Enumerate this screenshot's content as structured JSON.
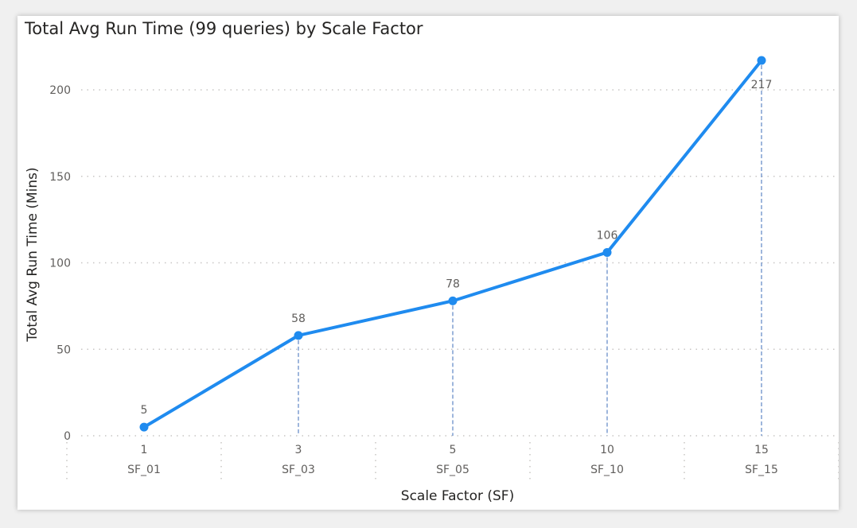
{
  "chart_data": {
    "type": "line",
    "title": "Total Avg Run Time (99 queries) by Scale Factor",
    "xlabel": "Scale Factor (SF)",
    "ylabel": "Total Avg Run Time (Mins)",
    "categories": [
      {
        "value": "1",
        "group": "SF_01"
      },
      {
        "value": "3",
        "group": "SF_03"
      },
      {
        "value": "5",
        "group": "SF_05"
      },
      {
        "value": "10",
        "group": "SF_10"
      },
      {
        "value": "15",
        "group": "SF_15"
      }
    ],
    "values": [
      5,
      58,
      78,
      106,
      217
    ],
    "data_labels": [
      "5",
      "58",
      "78",
      "106",
      "217"
    ],
    "yticks": [
      0,
      50,
      100,
      150,
      200
    ],
    "ylim": [
      0,
      217
    ],
    "grid": true,
    "line_color": "#1f8bef",
    "drop_line_color": "#6a8fc9"
  }
}
